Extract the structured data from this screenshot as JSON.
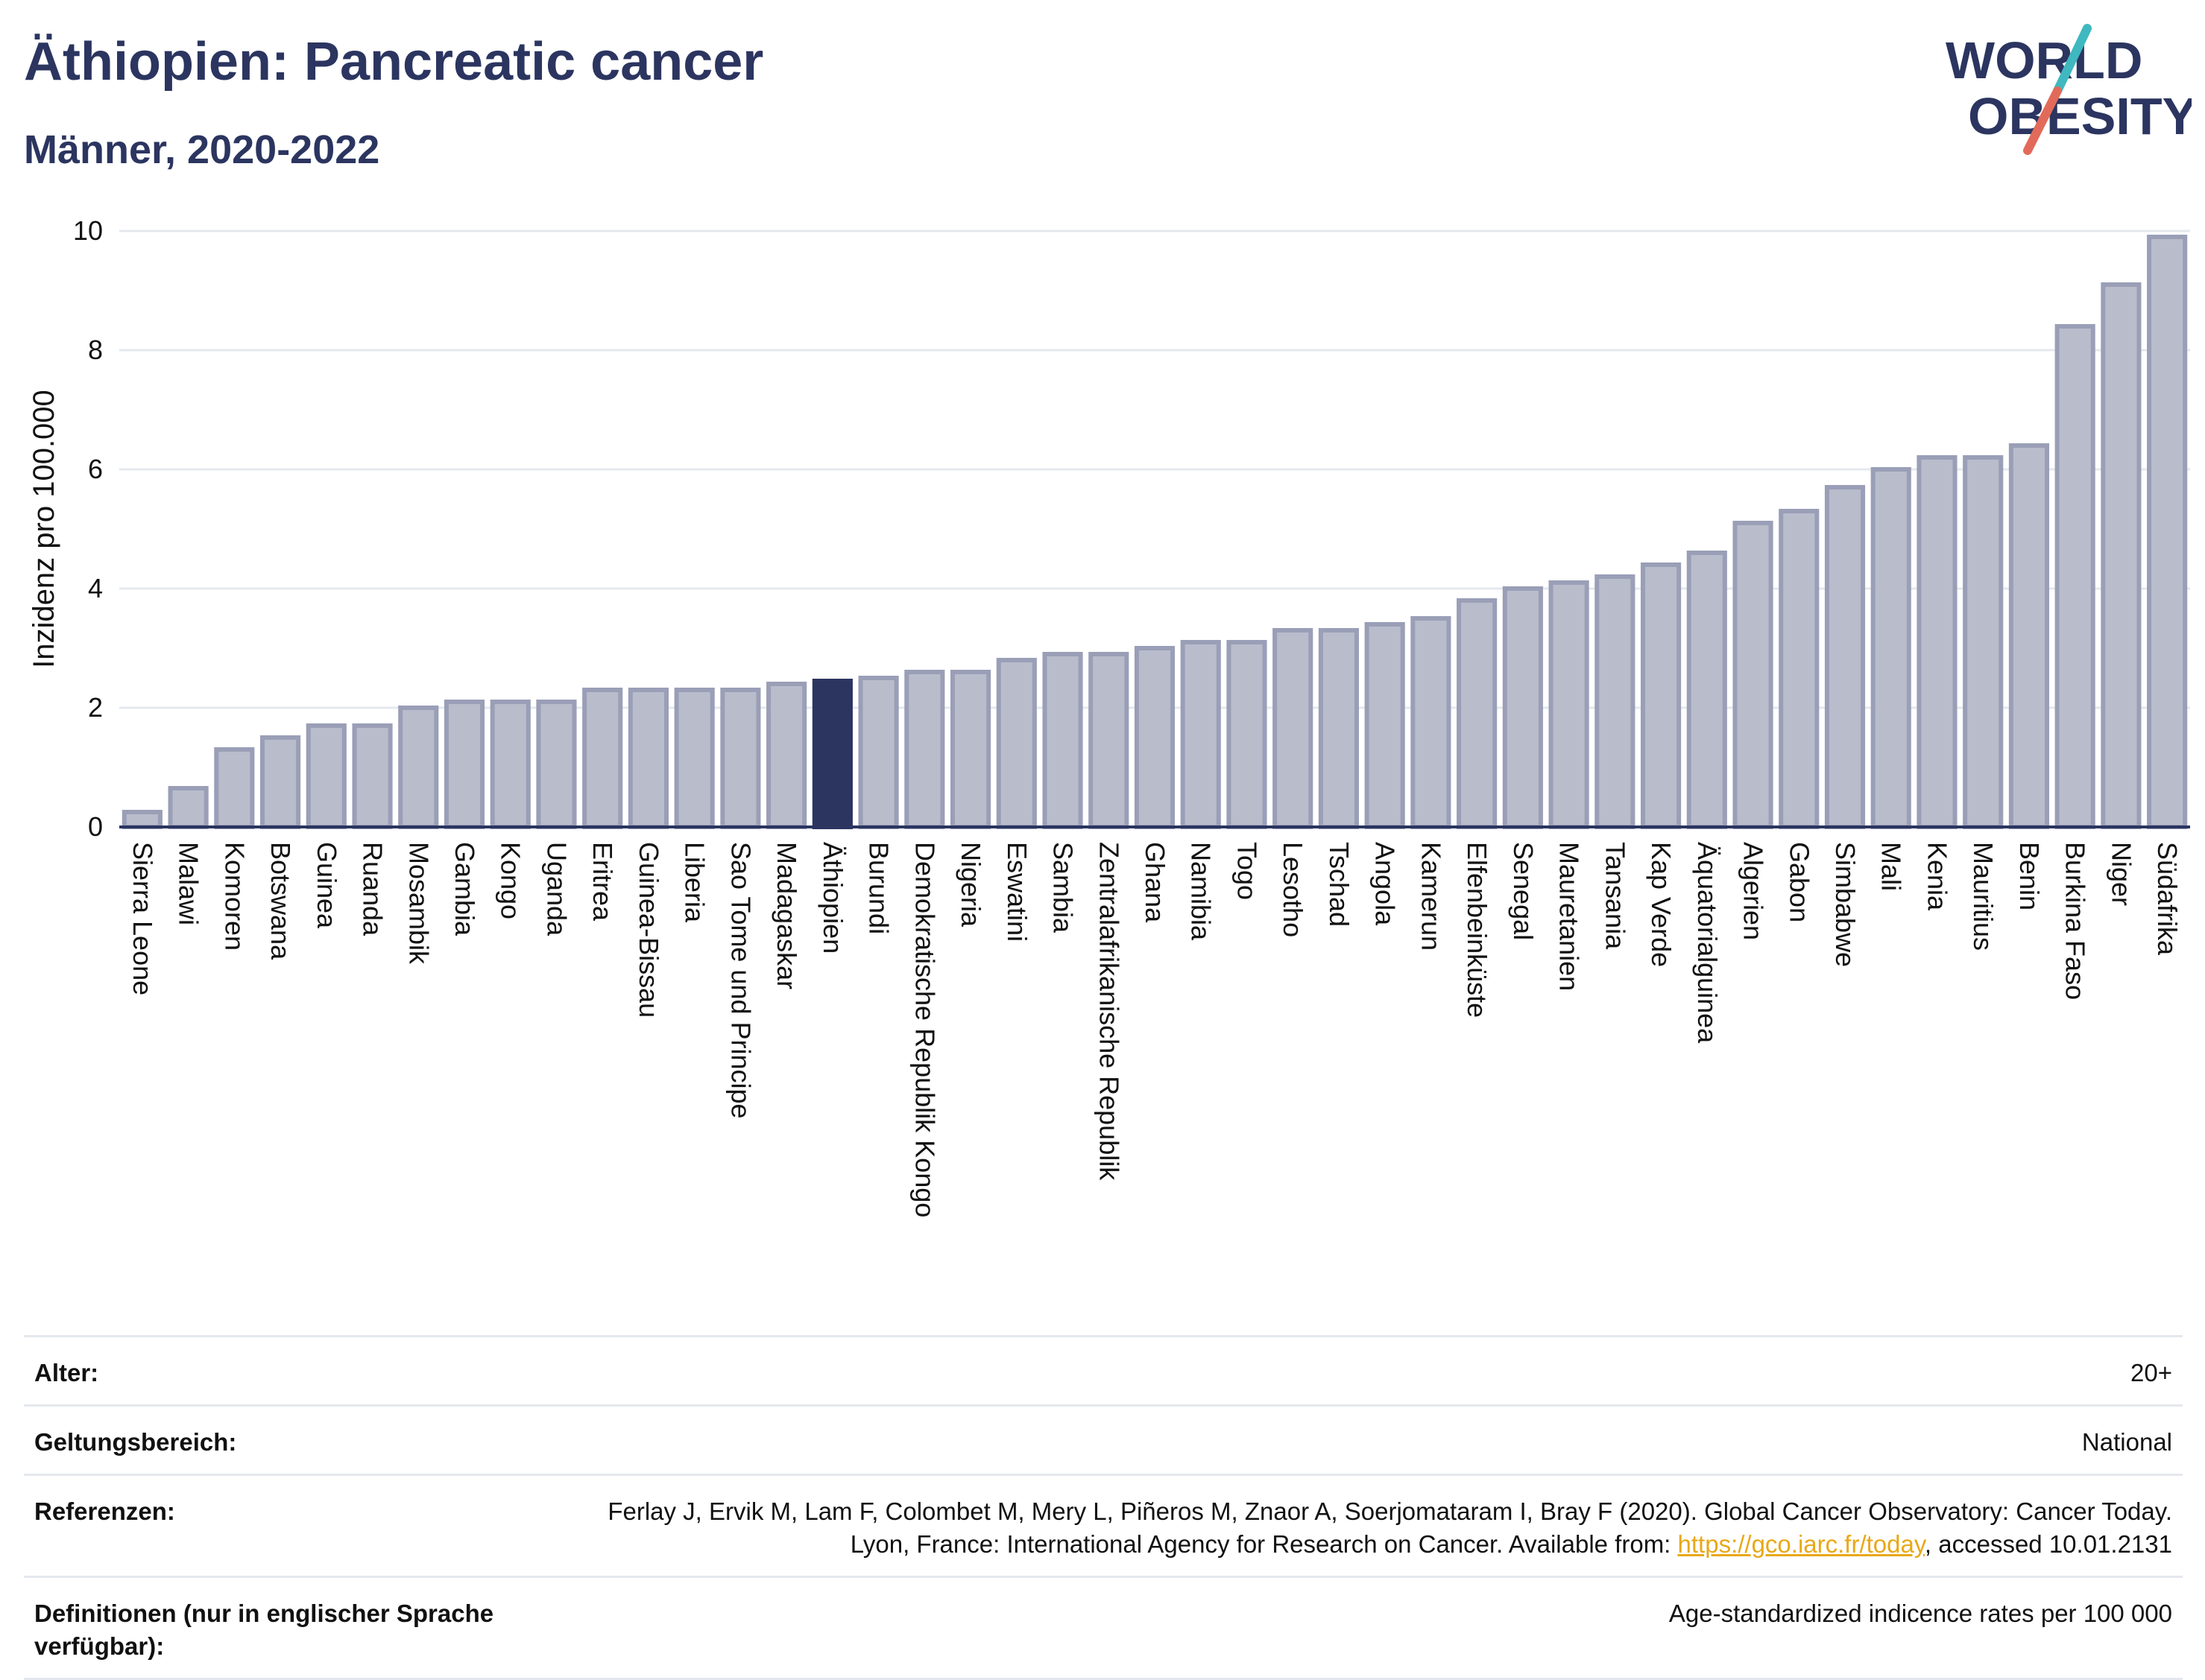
{
  "header": {
    "title": "Äthiopien: Pancreatic cancer",
    "subtitle": "Männer, 2020-2022"
  },
  "logo": {
    "line1": "WORLD",
    "line2": "OBESITY",
    "colors": {
      "text": "#2b3560",
      "slash_teal": "#3fb8c0",
      "slash_red": "#e26a5a"
    }
  },
  "colors": {
    "bar_fill": "#b9bccb",
    "bar_stroke": "#9a9fb7",
    "highlight": "#2b3560",
    "grid": "#e4e8ee",
    "axis": "#2b3560"
  },
  "chart_data": {
    "type": "bar",
    "ylabel": "Inzidenz pro 100.000",
    "ylim": [
      0,
      10
    ],
    "yticks": [
      0,
      2,
      4,
      6,
      8,
      10
    ],
    "grid": true,
    "highlight": "Äthiopien",
    "categories": [
      "Sierra Leone",
      "Malawi",
      "Komoren",
      "Botswana",
      "Guinea",
      "Ruanda",
      "Mosambik",
      "Gambia",
      "Kongo",
      "Uganda",
      "Eritrea",
      "Guinea-Bissau",
      "Liberia",
      "Sao Tome und Principe",
      "Madagaskar",
      "Äthiopien",
      "Burundi",
      "Demokratische Republik Kongo",
      "Nigeria",
      "Eswatini",
      "Sambia",
      "Zentralafrikanische Republik",
      "Ghana",
      "Namibia",
      "Togo",
      "Lesotho",
      "Tschad",
      "Angola",
      "Kamerun",
      "Elfenbeinküste",
      "Senegal",
      "Mauretanien",
      "Tansania",
      "Kap Verde",
      "Äquatorialguinea",
      "Algerien",
      "Gabon",
      "Simbabwe",
      "Mali",
      "Kenia",
      "Mauritius",
      "Benin",
      "Burkina Faso",
      "Niger",
      "Südafrika"
    ],
    "values": [
      0.25,
      0.65,
      1.3,
      1.5,
      1.7,
      1.7,
      2.0,
      2.1,
      2.1,
      2.1,
      2.3,
      2.3,
      2.3,
      2.3,
      2.4,
      2.45,
      2.5,
      2.6,
      2.6,
      2.8,
      2.9,
      2.9,
      3.0,
      3.1,
      3.1,
      3.3,
      3.3,
      3.4,
      3.5,
      3.8,
      4.0,
      4.1,
      4.2,
      4.4,
      4.6,
      5.1,
      5.3,
      5.7,
      6.0,
      6.2,
      6.2,
      6.4,
      8.4,
      9.1,
      9.9
    ]
  },
  "info": {
    "age_label": "Alter:",
    "age_value": "20+",
    "scope_label": "Geltungsbereich:",
    "scope_value": "National",
    "refs_label": "Referenzen:",
    "refs_text_1": "Ferlay J, Ervik M, Lam F, Colombet M, Mery L, Piñeros M, Znaor A, Soerjomataram I, Bray F (2020). Global Cancer Observatory: Cancer Today. Lyon, France: International Agency for Research on Cancer. Available from: ",
    "refs_link": "https://gco.iarc.fr/today",
    "refs_text_2": ", accessed 10.01.2131",
    "defs_label": "Definitionen (nur in englischer Sprache verfügbar):",
    "defs_value": "Age-standardized indicence rates per 100 000"
  }
}
